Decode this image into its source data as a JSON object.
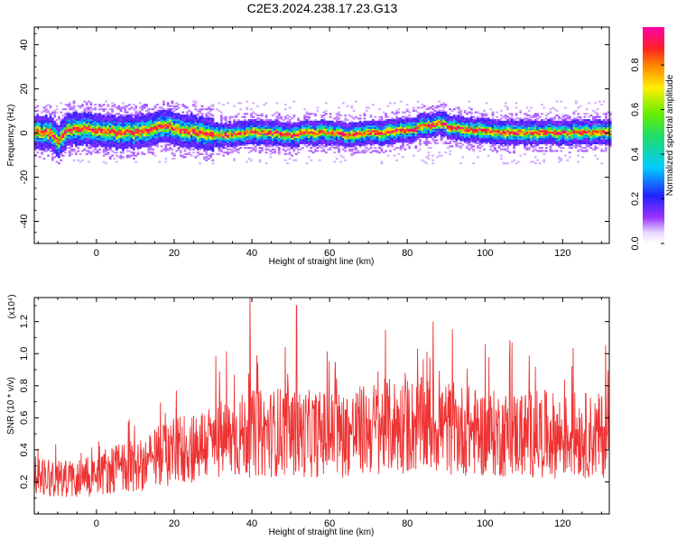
{
  "title": "C2E3.2024.238.17.23.G13",
  "chart_data": [
    {
      "type": "heatmap",
      "xlabel": "Height of straight line (km)",
      "ylabel": "Frequency (Hz)",
      "xlim": [
        -16,
        132
      ],
      "ylim": [
        -50,
        48
      ],
      "xticks": [
        0,
        20,
        40,
        60,
        80,
        100,
        120
      ],
      "yticks": [
        40,
        20,
        0,
        -20,
        -40
      ],
      "colorbar": {
        "label": "Normalized spectral amplitude",
        "range": [
          0,
          0.97
        ],
        "ticks": [
          "0.0",
          "0.2",
          "0.4",
          "0.6",
          "0.8"
        ],
        "colormap": "rainbow (purple-blue-cyan-green-yellow-red-magenta)"
      },
      "center_frequency_track": {
        "x": [
          -16,
          -12,
          -10,
          -8,
          -4,
          0,
          5,
          10,
          15,
          18,
          22,
          26,
          30,
          35,
          40,
          45,
          50,
          55,
          60,
          65,
          70,
          75,
          80,
          84,
          88,
          92,
          96,
          100,
          105,
          110,
          115,
          120,
          125,
          132
        ],
        "y": [
          0,
          0,
          -4,
          1,
          2,
          1,
          0,
          0,
          2,
          3,
          1,
          0,
          -1,
          -1,
          0,
          0,
          -1,
          0,
          0,
          -1,
          0,
          0,
          1,
          3,
          4,
          2,
          1,
          1,
          0,
          0,
          0,
          0,
          0,
          0
        ]
      }
    },
    {
      "type": "line",
      "xlabel": "Height of straight line (km)",
      "ylabel": "SNR (10 * v/v)",
      "y_multiplier": "(x10⁴)",
      "xlim": [
        -16,
        132
      ],
      "ylim": [
        0,
        1.35
      ],
      "xticks": [
        0,
        20,
        40,
        60,
        80,
        100,
        120
      ],
      "yticks": [
        "0.2",
        "0.4",
        "0.6",
        "0.8",
        "1.0",
        "1.2"
      ],
      "color": "#ee3333",
      "series": [
        {
          "x": [
            -16,
            -12,
            -8,
            -4,
            0,
            4,
            8,
            12,
            16,
            20,
            24,
            28,
            32,
            36,
            39.5,
            44,
            48,
            51.5,
            56,
            60,
            64,
            68,
            72,
            76,
            80,
            84,
            88,
            92,
            96,
            100,
            104,
            108,
            112,
            116,
            120,
            124,
            128,
            132
          ],
          "values": [
            0.25,
            0.24,
            0.22,
            0.23,
            0.25,
            0.28,
            0.3,
            0.3,
            0.36,
            0.4,
            0.42,
            0.44,
            0.46,
            0.48,
            1.35,
            0.5,
            0.52,
            1.3,
            0.5,
            0.5,
            0.5,
            0.52,
            0.54,
            0.55,
            0.55,
            0.55,
            0.55,
            0.53,
            0.52,
            0.5,
            0.5,
            0.5,
            0.5,
            0.5,
            0.48,
            0.5,
            0.48,
            0.5
          ]
        }
      ]
    }
  ]
}
